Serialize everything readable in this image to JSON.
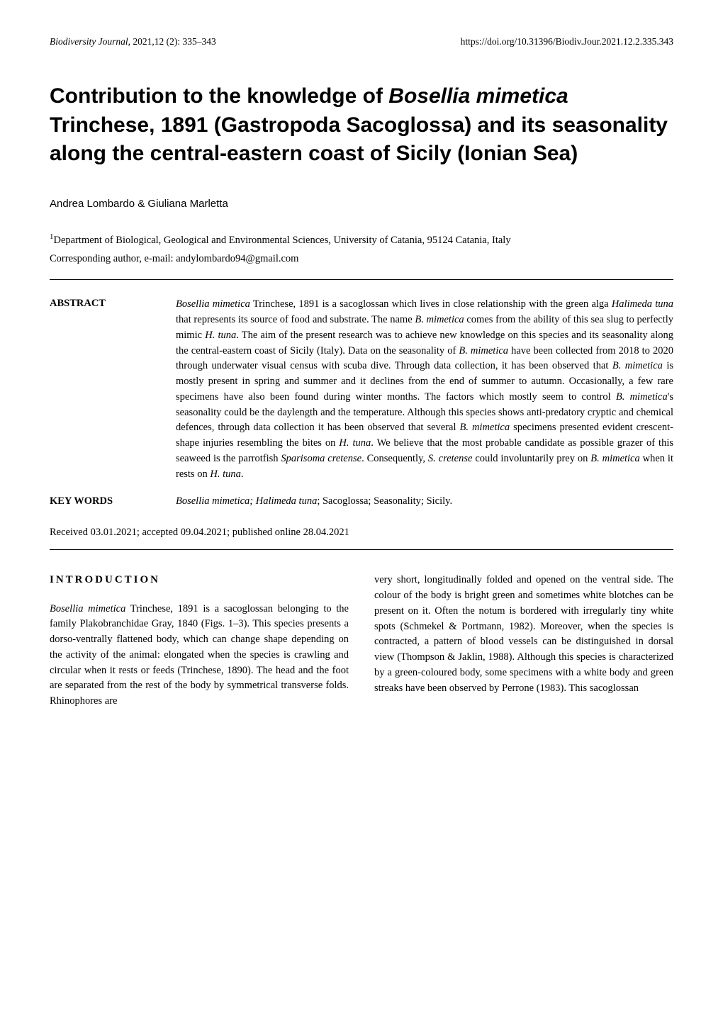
{
  "header": {
    "journal_name": "Biodiversity Journal",
    "journal_issue": ", 2021,12 (2): 335–343",
    "doi": "https://doi.org/10.31396/Biodiv.Jour.2021.12.2.335.343"
  },
  "title_html": "Contribution to the knowledge of <em>Bosellia mimetica</em> Trinchese, 1891 (Gastropoda Sacoglossa) and its seasonality along the central-eastern coast of Sicily (Ionian Sea)",
  "authors": "Andrea Lombardo & Giuliana Marletta",
  "affiliation_sup": "1",
  "affiliation": "Department of Biological, Geological and Environmental Sciences, University of Catania, 95124 Catania, Italy",
  "corresponding": "Corresponding author, e-mail: andylombardo94@gmail.com",
  "abstract": {
    "label": "ABSTRACT",
    "text_html": "<em>Bosellia mimetica</em> Trinchese, 1891 is a sacoglossan which lives in close relationship with the green alga <em>Halimeda tuna</em> that represents its source of food and substrate. The name <em>B. mimetica</em> comes from the ability of this sea slug to perfectly mimic <em>H. tuna</em>. The aim of the present research was to achieve new knowledge on this species and its seasonality along the central-eastern coast of Sicily (Italy). Data on the seasonality of <em>B. mimetica</em> have been collected from 2018 to 2020 through underwater visual census with scuba dive. Through data collection, it has been observed that <em>B. mimetica</em> is mostly present in spring and summer and it declines from the end of summer to autumn. Occasionally, a few rare specimens have also been found during winter months. The factors which mostly seem to control <em>B. mimetica</em>'s seasonality could be the daylength and the temperature. Although this species shows anti-predatory cryptic and chemical defences, through data collection it has been observed that several <em>B. mimetica</em> specimens presented evident crescent-shape injuries resembling the bites on <em>H. tuna</em>. We believe that the most probable candidate as possible grazer of this seaweed is the parrotfish <em>Sparisoma cretense</em>. Consequently, <em>S. cretense</em> could involuntarily prey on <em>B. mimetica</em> when it rests on <em>H. tuna</em>."
  },
  "keywords": {
    "label": "KEY WORDS",
    "text_html": "<em>Bosellia mimetica; Halimeda tuna</em>; Sacoglossa; Seasonality; Sicily."
  },
  "received": "Received 03.01.2021; accepted 09.04.2021; published online 28.04.2021",
  "intro": {
    "heading": "INTRODUCTION",
    "col1_html": "<span class=\"indent\"></span><em>Bosellia mimetica</em> Trinchese, 1891 is a sacoglossan belonging to the family Plakobranchidae Gray, 1840 (Figs. 1–3). This species presents a dorso-ventrally flattened body, which can change shape depending on the activity of the animal: elongated when the species is crawling and circular when it rests or feeds (Trinchese, 1890). The head and the foot are separated from the rest of the body by symmetrical transverse folds. Rhinophores are",
    "col2_html": "very short, longitudinally folded and opened on the ventral side. The colour of the body is bright green and sometimes white blotches can be present on it. Often the notum is bordered with irregularly tiny white spots (Schmekel &amp; Portmann, 1982). Moreover, when the species is contracted, a pattern of blood vessels can be distinguished in dorsal view (Thompson &amp; Jaklin, 1988). Although this species is characterized by a green-coloured body, some specimens with a white body and green streaks have been observed by Perrone (1983). This sacoglossan"
  }
}
